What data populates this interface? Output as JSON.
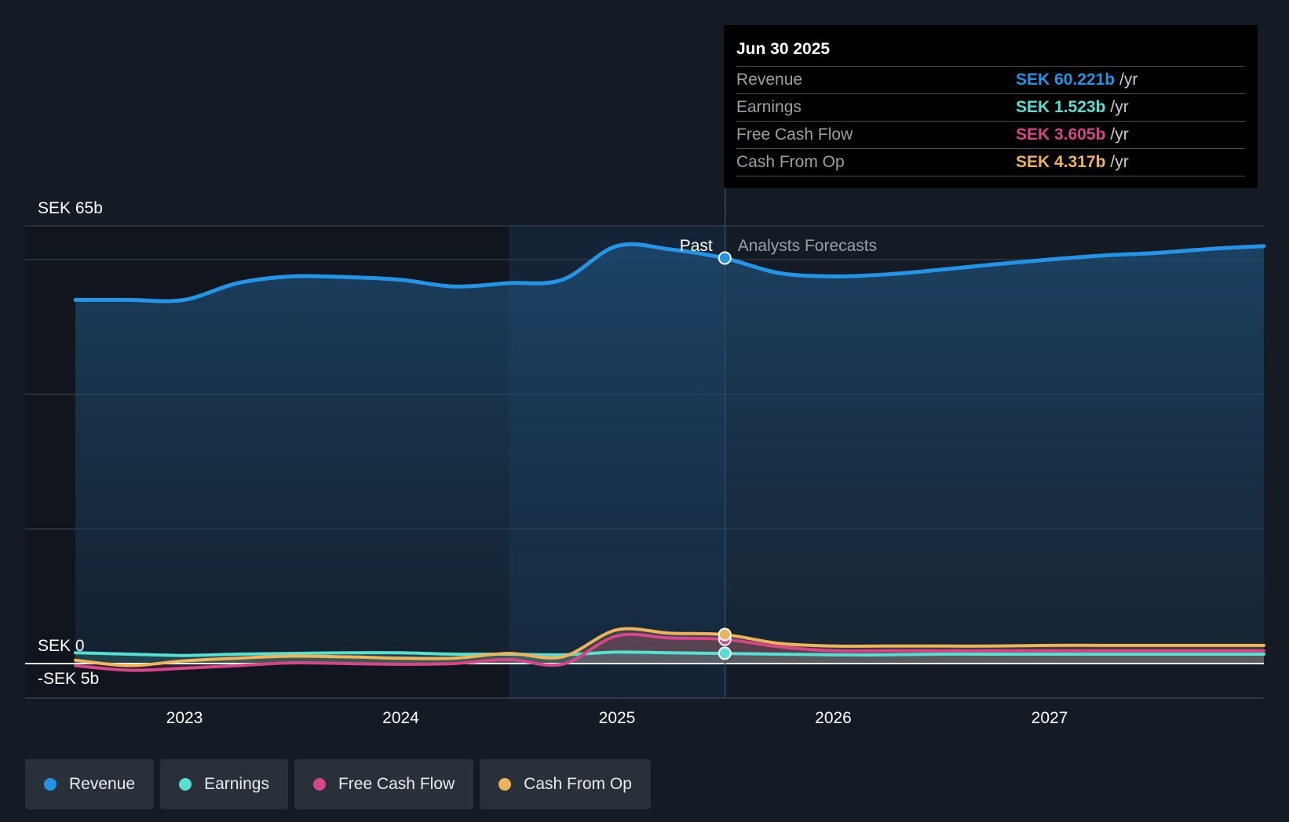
{
  "tooltip": {
    "date": "Jun 30 2025",
    "rows": [
      {
        "label": "Revenue",
        "value": "SEK 60.221b",
        "unit": "/yr",
        "color": "#2394e6"
      },
      {
        "label": "Earnings",
        "value": "SEK 1.523b",
        "unit": "/yr",
        "color": "#56dfd2"
      },
      {
        "label": "Free Cash Flow",
        "value": "SEK 3.605b",
        "unit": "/yr",
        "color": "#d6468a"
      },
      {
        "label": "Cash From Op",
        "value": "SEK 4.317b",
        "unit": "/yr",
        "color": "#eeb45c"
      }
    ]
  },
  "labels": {
    "past": "Past",
    "forecast": "Analysts Forecasts"
  },
  "legend": [
    {
      "label": "Revenue",
      "color": "#2394e6"
    },
    {
      "label": "Earnings",
      "color": "#56dfd2"
    },
    {
      "label": "Free Cash Flow",
      "color": "#d6468a"
    },
    {
      "label": "Cash From Op",
      "color": "#eeb45c"
    }
  ],
  "chart_data": {
    "type": "line",
    "y_tick_labels": [
      "SEK 65b",
      "SEK 0",
      "-SEK 5b"
    ],
    "ylim": [
      -5,
      65
    ],
    "x_tick_labels": [
      "2023",
      "2024",
      "2025",
      "2026",
      "2027"
    ],
    "xlim": [
      2022.5,
      2027.99
    ],
    "past_end": 2025.5,
    "highlight_start": 2024.5,
    "series": [
      {
        "name": "Revenue",
        "color": "#2394e6",
        "x": [
          2022.5,
          2022.75,
          2023.0,
          2023.25,
          2023.5,
          2023.75,
          2024.0,
          2024.25,
          2024.5,
          2024.75,
          2025.0,
          2025.25,
          2025.5,
          2025.75,
          2026.0,
          2026.25,
          2026.5,
          2026.75,
          2027.0,
          2027.25,
          2027.5,
          2027.75,
          2027.99
        ],
        "y": [
          54.0,
          54.0,
          54.0,
          56.5,
          57.5,
          57.4,
          57.0,
          56.0,
          56.5,
          57.0,
          62.0,
          61.5,
          60.2,
          58.0,
          57.5,
          57.8,
          58.5,
          59.3,
          60.0,
          60.6,
          61.0,
          61.6,
          62.0
        ]
      },
      {
        "name": "Earnings",
        "color": "#56dfd2",
        "x": [
          2022.5,
          2022.75,
          2023.0,
          2023.25,
          2023.5,
          2023.75,
          2024.0,
          2024.25,
          2024.5,
          2024.75,
          2025.0,
          2025.25,
          2025.5,
          2025.75,
          2026.0,
          2026.25,
          2026.5,
          2026.75,
          2027.0,
          2027.25,
          2027.5,
          2027.75,
          2027.99
        ],
        "y": [
          1.6,
          1.4,
          1.2,
          1.4,
          1.5,
          1.6,
          1.6,
          1.4,
          1.4,
          1.3,
          1.7,
          1.6,
          1.5,
          1.4,
          1.3,
          1.3,
          1.4,
          1.4,
          1.4,
          1.4,
          1.4,
          1.4,
          1.4
        ]
      },
      {
        "name": "Free Cash Flow",
        "color": "#d6468a",
        "x": [
          2022.5,
          2022.75,
          2023.0,
          2023.25,
          2023.5,
          2023.75,
          2024.0,
          2024.25,
          2024.5,
          2024.75,
          2025.0,
          2025.25,
          2025.5,
          2025.75,
          2026.0,
          2026.25,
          2026.5,
          2026.75,
          2027.0,
          2027.25,
          2027.5,
          2027.75,
          2027.99
        ],
        "y": [
          -0.3,
          -1.0,
          -0.7,
          -0.3,
          0.1,
          0.0,
          -0.1,
          0.0,
          0.6,
          -0.1,
          4.1,
          3.8,
          3.6,
          2.5,
          1.9,
          1.9,
          1.9,
          1.9,
          1.9,
          1.9,
          1.9,
          1.9,
          1.9
        ]
      },
      {
        "name": "Cash From Op",
        "color": "#eeb45c",
        "x": [
          2022.5,
          2022.75,
          2023.0,
          2023.25,
          2023.5,
          2023.75,
          2024.0,
          2024.25,
          2024.5,
          2024.75,
          2025.0,
          2025.25,
          2025.5,
          2025.75,
          2026.0,
          2026.25,
          2026.5,
          2026.75,
          2027.0,
          2027.25,
          2027.5,
          2027.75,
          2027.99
        ],
        "y": [
          0.5,
          -0.3,
          0.4,
          0.8,
          1.1,
          1.0,
          0.8,
          0.8,
          1.5,
          1.0,
          5.0,
          4.5,
          4.3,
          3.0,
          2.6,
          2.6,
          2.6,
          2.6,
          2.7,
          2.7,
          2.7,
          2.7,
          2.7
        ]
      }
    ],
    "markers_at": 2025.5,
    "marker_values": [
      60.221,
      1.523,
      3.605,
      4.317
    ],
    "grid": true,
    "legend_position": "bottom-left"
  }
}
